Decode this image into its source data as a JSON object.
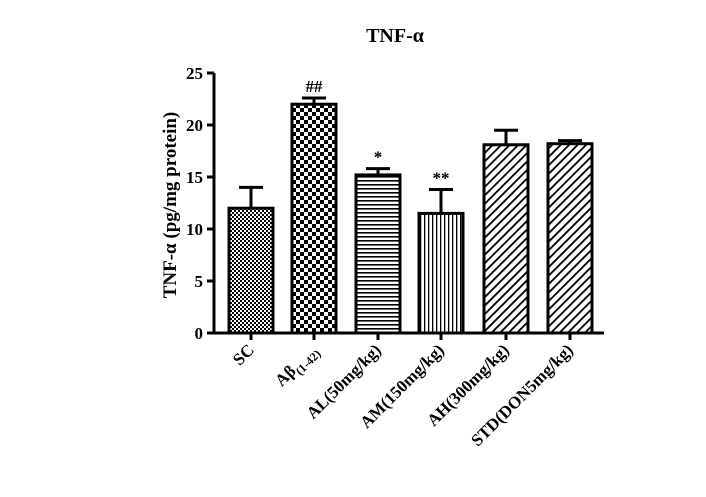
{
  "chart_data": {
    "type": "bar",
    "title": "TNF-α",
    "xlabel": "",
    "ylabel": "TNF-α (pg/mg protein)",
    "ylim": [
      0,
      25
    ],
    "yticks": [
      0,
      5,
      10,
      15,
      20,
      25
    ],
    "grid": false,
    "legend": "none",
    "categories": [
      {
        "main": "SC",
        "sub": ""
      },
      {
        "main": "Aβ",
        "sub": "(1-42)"
      },
      {
        "main": "AL(50mg/kg)",
        "sub": ""
      },
      {
        "main": "AM(150mg/kg)",
        "sub": ""
      },
      {
        "main": "AH(300mg/kg)",
        "sub": ""
      },
      {
        "main": "STD(DON5mg/kg)",
        "sub": ""
      }
    ],
    "values": [
      12.0,
      22.0,
      15.2,
      11.5,
      18.1,
      18.2
    ],
    "errors": [
      2.0,
      0.6,
      0.6,
      2.3,
      1.4,
      0.3
    ],
    "annotations": [
      "",
      "##",
      "*",
      "**",
      "",
      ""
    ],
    "patterns": [
      "dense-dots",
      "checker",
      "horizontal-lines",
      "vertical-lines",
      "diagonal-lines",
      "diagonal-lines"
    ],
    "bar_color": "#000000"
  }
}
